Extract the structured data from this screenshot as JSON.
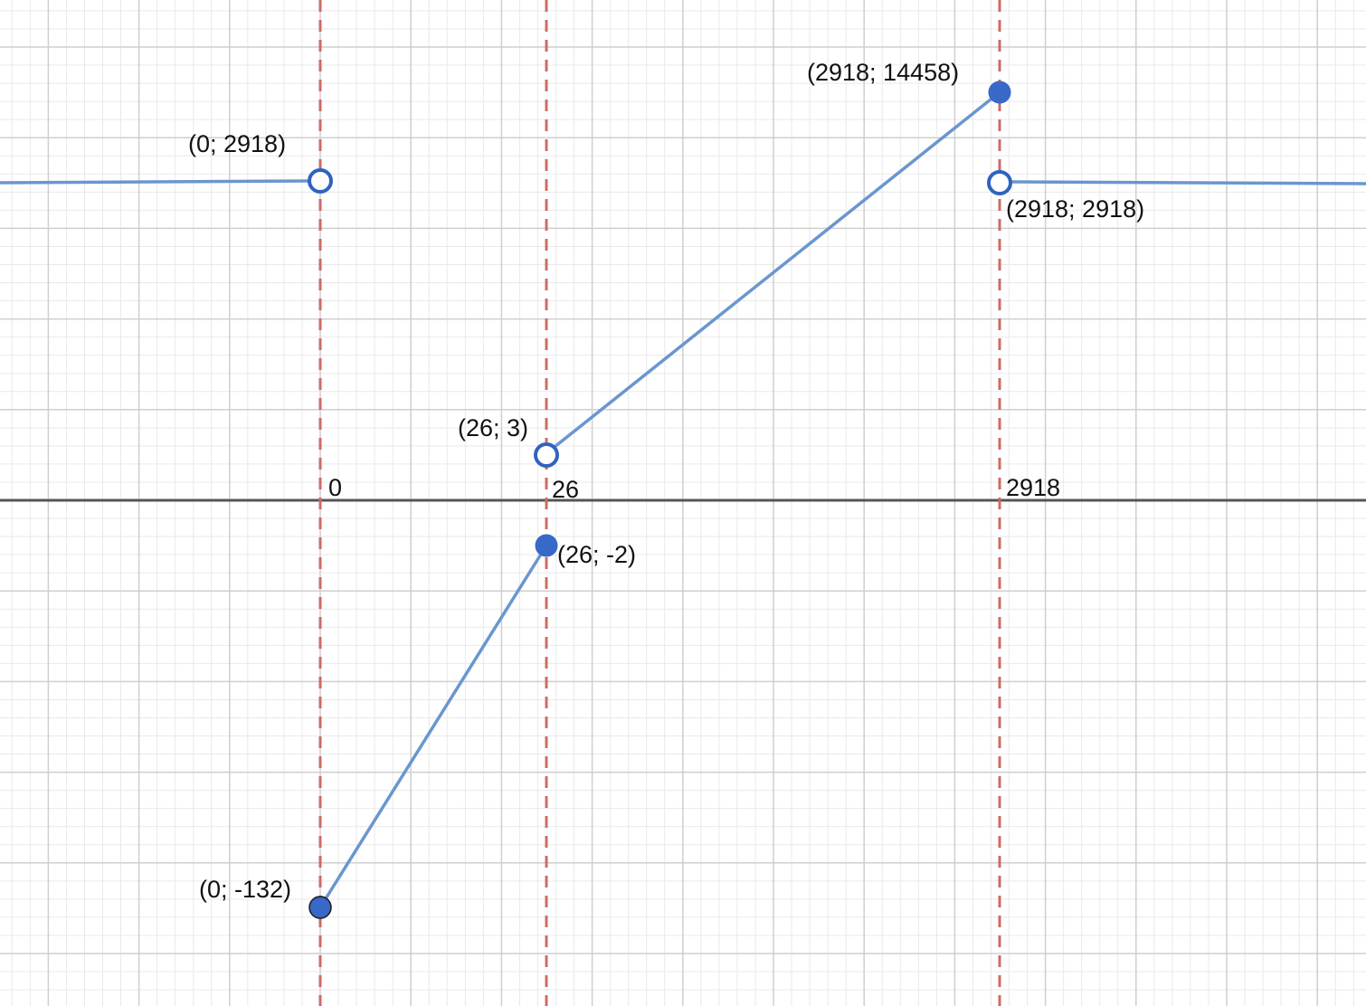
{
  "diagram": {
    "colors": {
      "piece_line": "#6a96cf",
      "point": "#3868c8",
      "asymptote": "#cd6b66",
      "axis": "#555555",
      "grid_major": "#cfcfcf",
      "grid_minor": "#e9e9e9"
    },
    "axis_markers": [
      {
        "id": "x0",
        "label": "0"
      },
      {
        "id": "x26",
        "label": "26"
      },
      {
        "id": "x2918",
        "label": "2918"
      }
    ],
    "points": [
      {
        "id": "p1",
        "label": "(0; 2918)",
        "kind": "open"
      },
      {
        "id": "p2",
        "label": "(0; -132)",
        "kind": "closed"
      },
      {
        "id": "p3",
        "label": "(26; 3)",
        "kind": "open"
      },
      {
        "id": "p4",
        "label": "(26; -2)",
        "kind": "closed"
      },
      {
        "id": "p5",
        "label": "(2918; 14458)",
        "kind": "closed"
      },
      {
        "id": "p6",
        "label": "(2918; 2918)",
        "kind": "open"
      }
    ]
  }
}
